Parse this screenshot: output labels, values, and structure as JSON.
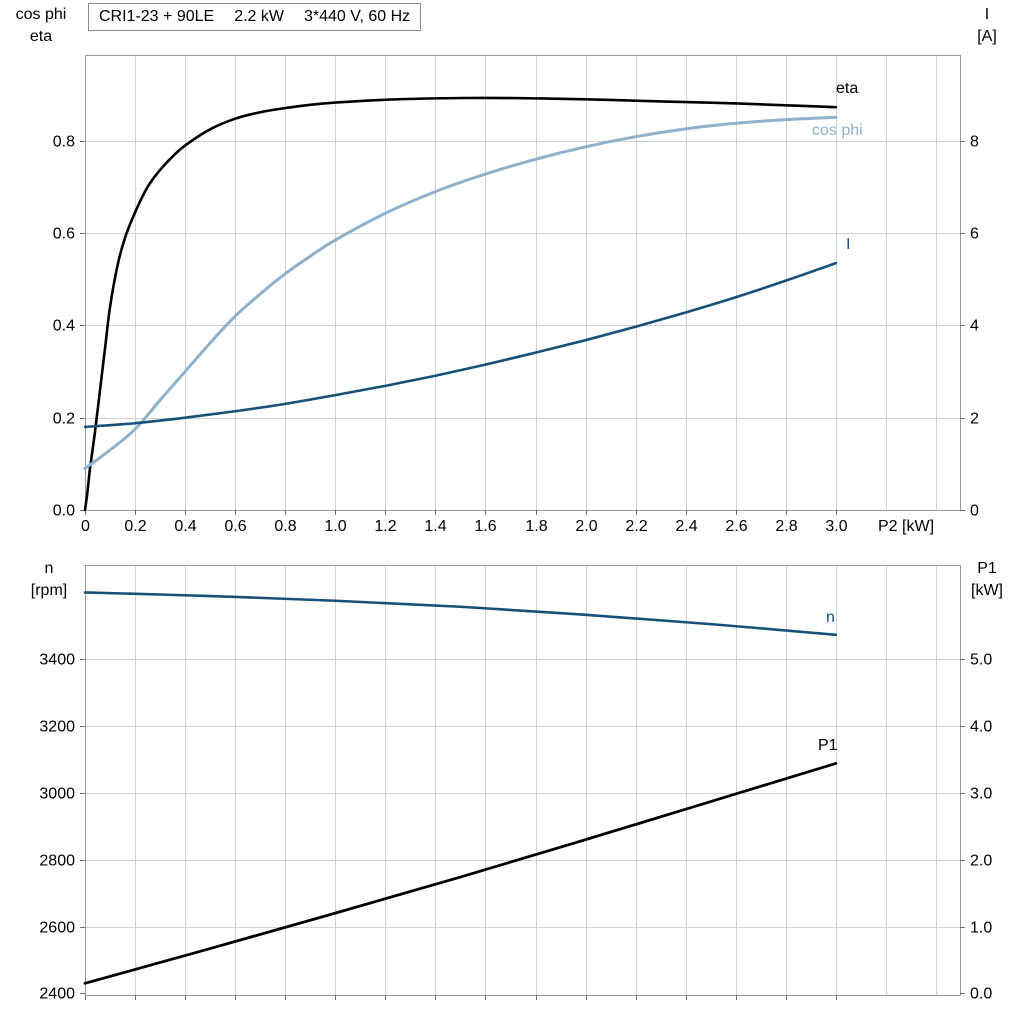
{
  "header": {
    "model": "CRI1-23 + 90LE",
    "power": "2.2 kW",
    "supply": "3*440 V, 60 Hz"
  },
  "corner_labels": {
    "top_left_line1": "cos phi",
    "top_left_line2": "eta",
    "top_right_line1": "I",
    "top_right_line2": "[A]",
    "bottom_left_line1": "n",
    "bottom_left_line2": "[rpm]",
    "bottom_right_line1": "P1",
    "bottom_right_line2": "[kW]"
  },
  "colors": {
    "black_curve": "#000000",
    "dark_blue_curve": "#175079",
    "light_blue_curve": "#8fb1cc",
    "grid": "#d2d2d2",
    "frame": "#9a9a9a",
    "tick": "#6e6e6e",
    "text": "#000000"
  },
  "chart_data": [
    {
      "type": "line",
      "name": "top",
      "x": {
        "min": 0,
        "max": 3.496,
        "grid_step": 0.2,
        "label": "P2 [kW]",
        "ticks": [
          0,
          0.2,
          0.4,
          0.6,
          0.8,
          1.0,
          1.2,
          1.4,
          1.6,
          1.8,
          2.0,
          2.2,
          2.4,
          2.6,
          2.8,
          3.0
        ],
        "tick_labels": [
          "0",
          "0.2",
          "0.4",
          "0.6",
          "0.8",
          "1.0",
          "1.2",
          "1.4",
          "1.6",
          "1.8",
          "2.0",
          "2.2",
          "2.4",
          "2.6",
          "2.8",
          "3.0"
        ]
      },
      "left": {
        "min": 0,
        "max": 0.986,
        "ticks": [
          0,
          0.2,
          0.4,
          0.6,
          0.8
        ],
        "tick_labels": [
          "0.0",
          "0.2",
          "0.4",
          "0.6",
          "0.8"
        ]
      },
      "right": {
        "min": 0,
        "max": 9.86,
        "ticks": [
          0,
          2,
          4,
          6,
          8
        ],
        "tick_labels": [
          "0",
          "2",
          "4",
          "6",
          "8"
        ]
      },
      "series": [
        {
          "name": "eta",
          "axis": "left",
          "color_key": "black_curve",
          "stroke_width": 2.6,
          "points": [
            [
              0,
              0
            ],
            [
              0.01,
              0.04
            ],
            [
              0.02,
              0.09
            ],
            [
              0.04,
              0.17
            ],
            [
              0.06,
              0.26
            ],
            [
              0.08,
              0.35
            ],
            [
              0.1,
              0.44
            ],
            [
              0.13,
              0.53
            ],
            [
              0.16,
              0.59
            ],
            [
              0.2,
              0.645
            ],
            [
              0.25,
              0.7
            ],
            [
              0.3,
              0.737
            ],
            [
              0.35,
              0.766
            ],
            [
              0.4,
              0.79
            ],
            [
              0.5,
              0.825
            ],
            [
              0.6,
              0.848
            ],
            [
              0.7,
              0.862
            ],
            [
              0.8,
              0.871
            ],
            [
              0.9,
              0.878
            ],
            [
              1.0,
              0.883
            ],
            [
              1.2,
              0.889
            ],
            [
              1.4,
              0.892
            ],
            [
              1.6,
              0.893
            ],
            [
              1.8,
              0.892
            ],
            [
              2.0,
              0.89
            ],
            [
              2.2,
              0.887
            ],
            [
              2.4,
              0.884
            ],
            [
              2.6,
              0.881
            ],
            [
              2.8,
              0.877
            ],
            [
              3.0,
              0.873
            ]
          ]
        },
        {
          "name": "cos phi",
          "axis": "left",
          "color_key": "light_blue_curve",
          "stroke_width": 3,
          "points": [
            [
              0,
              0.09
            ],
            [
              0.1,
              0.13
            ],
            [
              0.2,
              0.175
            ],
            [
              0.3,
              0.238
            ],
            [
              0.4,
              0.3
            ],
            [
              0.5,
              0.362
            ],
            [
              0.6,
              0.42
            ],
            [
              0.7,
              0.468
            ],
            [
              0.8,
              0.512
            ],
            [
              0.9,
              0.55
            ],
            [
              1.0,
              0.585
            ],
            [
              1.2,
              0.643
            ],
            [
              1.4,
              0.69
            ],
            [
              1.6,
              0.728
            ],
            [
              1.8,
              0.76
            ],
            [
              2.0,
              0.787
            ],
            [
              2.2,
              0.809
            ],
            [
              2.4,
              0.826
            ],
            [
              2.6,
              0.838
            ],
            [
              2.8,
              0.846
            ],
            [
              3.0,
              0.851
            ]
          ]
        },
        {
          "name": "I",
          "axis": "right",
          "color_key": "dark_blue_curve",
          "stroke_width": 2.6,
          "points": [
            [
              0,
              1.8
            ],
            [
              0.2,
              1.88
            ],
            [
              0.4,
              2.0
            ],
            [
              0.6,
              2.14
            ],
            [
              0.8,
              2.3
            ],
            [
              1.0,
              2.49
            ],
            [
              1.2,
              2.69
            ],
            [
              1.4,
              2.91
            ],
            [
              1.6,
              3.15
            ],
            [
              1.8,
              3.41
            ],
            [
              2.0,
              3.68
            ],
            [
              2.2,
              3.97
            ],
            [
              2.4,
              4.28
            ],
            [
              2.6,
              4.61
            ],
            [
              2.8,
              4.97
            ],
            [
              3.0,
              5.35
            ]
          ]
        }
      ]
    },
    {
      "type": "line",
      "name": "bottom",
      "x": {
        "min": 0,
        "max": 3.496,
        "grid_step": 0.2,
        "label": "",
        "ticks": [
          0,
          0.2,
          0.4,
          0.6,
          0.8,
          1.0,
          1.2,
          1.4,
          1.6,
          1.8,
          2.0,
          2.2,
          2.4,
          2.6,
          2.8,
          3.0
        ],
        "tick_labels": []
      },
      "left": {
        "min": 2395,
        "max": 3682,
        "ticks": [
          2400,
          2600,
          2800,
          3000,
          3200,
          3400
        ],
        "tick_labels": [
          "2400",
          "2600",
          "2800",
          "3000",
          "3200",
          "3400"
        ]
      },
      "right": {
        "min": -0.025,
        "max": 6.41,
        "ticks": [
          0,
          1,
          2,
          3,
          4,
          5
        ],
        "tick_labels": [
          "0.0",
          "1.0",
          "2.0",
          "3.0",
          "4.0",
          "5.0"
        ]
      },
      "series": [
        {
          "name": "n",
          "axis": "left",
          "color_key": "dark_blue_curve",
          "stroke_width": 2.6,
          "points": [
            [
              0,
              3600
            ],
            [
              0.5,
              3589
            ],
            [
              1.0,
              3575
            ],
            [
              1.5,
              3557
            ],
            [
              2.0,
              3533
            ],
            [
              2.5,
              3505
            ],
            [
              3.0,
              3473
            ]
          ]
        },
        {
          "name": "P1",
          "axis": "right",
          "color_key": "black_curve",
          "stroke_width": 2.8,
          "points": [
            [
              0,
              0.15
            ],
            [
              0.5,
              0.67
            ],
            [
              1.0,
              1.2
            ],
            [
              1.5,
              1.74
            ],
            [
              2.0,
              2.3
            ],
            [
              2.5,
              2.87
            ],
            [
              3.0,
              3.44
            ]
          ]
        }
      ]
    }
  ]
}
